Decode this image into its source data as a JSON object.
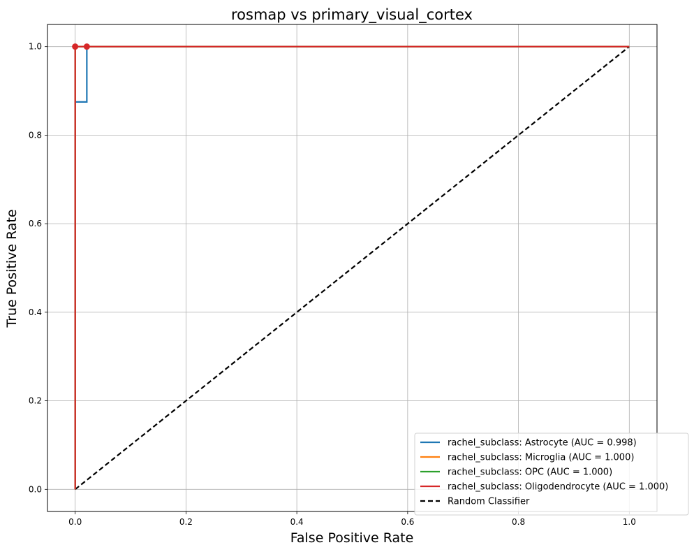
{
  "chart_data": {
    "type": "line",
    "title": "rosmap vs primary_visual_cortex",
    "xlabel": "False Positive Rate",
    "ylabel": "True Positive Rate",
    "xlim": [
      -0.05,
      1.05
    ],
    "ylim": [
      -0.05,
      1.05
    ],
    "xticks": [
      0.0,
      0.2,
      0.4,
      0.6,
      0.8,
      1.0
    ],
    "yticks": [
      0.0,
      0.2,
      0.4,
      0.6,
      0.8,
      1.0
    ],
    "xtick_labels": [
      "0.0",
      "0.2",
      "0.4",
      "0.6",
      "0.8",
      "1.0"
    ],
    "ytick_labels": [
      "0.0",
      "0.2",
      "0.4",
      "0.6",
      "0.8",
      "1.0"
    ],
    "grid": true,
    "legend_position": "lower-right",
    "series": [
      {
        "name": "rachel_subclass: Astrocyte (AUC = 0.998)",
        "color": "#1f77b4",
        "x": [
          0,
          0,
          0.021,
          0.021,
          1
        ],
        "y": [
          0,
          0.875,
          0.875,
          1,
          1
        ],
        "marker": {
          "x": 0.021,
          "y": 1
        }
      },
      {
        "name": "rachel_subclass: Microglia (AUC = 1.000)",
        "color": "#ff7f0e",
        "x": [
          0,
          0,
          1
        ],
        "y": [
          0,
          1,
          1
        ],
        "marker": {
          "x": 0,
          "y": 1
        }
      },
      {
        "name": "rachel_subclass: OPC (AUC = 1.000)",
        "color": "#2ca02c",
        "x": [
          0,
          0,
          1
        ],
        "y": [
          0,
          1,
          1
        ],
        "marker": {
          "x": 0,
          "y": 1
        }
      },
      {
        "name": "rachel_subclass: Oligodendrocyte (AUC = 1.000)",
        "color": "#d62728",
        "x": [
          0,
          0,
          1
        ],
        "y": [
          0,
          1,
          1
        ],
        "marker": {
          "x": 0,
          "y": 1
        }
      }
    ],
    "reference_line": {
      "name": "Random Classifier",
      "color": "#000000",
      "style": "dashed",
      "x": [
        0,
        1
      ],
      "y": [
        0,
        1
      ]
    },
    "marker_color": "#d62728"
  }
}
